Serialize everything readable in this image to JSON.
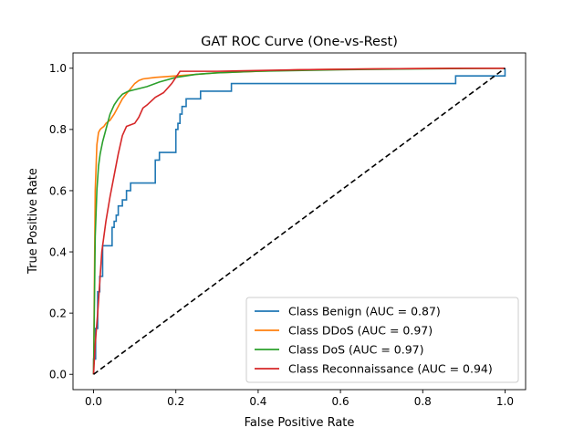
{
  "chart_data": {
    "type": "line",
    "title": "GAT ROC Curve (One-vs-Rest)",
    "xlabel": "False Positive Rate",
    "ylabel": "True Positive Rate",
    "xlim": [
      -0.05,
      1.05
    ],
    "ylim": [
      -0.05,
      1.05
    ],
    "xticks": [
      0.0,
      0.2,
      0.4,
      0.6,
      0.8,
      1.0
    ],
    "yticks": [
      0.0,
      0.2,
      0.4,
      0.6,
      0.8,
      1.0
    ],
    "xtick_labels": [
      "0.0",
      "0.2",
      "0.4",
      "0.6",
      "0.8",
      "1.0"
    ],
    "ytick_labels": [
      "0.0",
      "0.2",
      "0.4",
      "0.6",
      "0.8",
      "1.0"
    ],
    "grid": false,
    "legend_position": "lower right",
    "series": [
      {
        "name": "Class Benign (AUC = 0.87)",
        "color": "#1f77b4",
        "step": true,
        "x": [
          0.0,
          0.0,
          0.005,
          0.01,
          0.015,
          0.022,
          0.045,
          0.05,
          0.055,
          0.06,
          0.07,
          0.08,
          0.09,
          0.145,
          0.15,
          0.16,
          0.17,
          0.2,
          0.205,
          0.21,
          0.215,
          0.225,
          0.26,
          0.335,
          0.88,
          1.0,
          1.0
        ],
        "y": [
          0.0,
          0.05,
          0.15,
          0.27,
          0.32,
          0.42,
          0.48,
          0.5,
          0.52,
          0.55,
          0.57,
          0.6,
          0.625,
          0.625,
          0.7,
          0.725,
          0.725,
          0.8,
          0.82,
          0.85,
          0.875,
          0.9,
          0.925,
          0.95,
          0.975,
          0.975,
          1.0
        ]
      },
      {
        "name": "Class DDoS (AUC = 0.97)",
        "color": "#ff7f0e",
        "step": false,
        "x": [
          0.0,
          0.004,
          0.008,
          0.012,
          0.016,
          0.02,
          0.025,
          0.03,
          0.04,
          0.05,
          0.07,
          0.1,
          0.11,
          0.12,
          0.15,
          0.2,
          0.3,
          0.5,
          0.7,
          0.9,
          1.0
        ],
        "y": [
          0.0,
          0.6,
          0.75,
          0.79,
          0.8,
          0.805,
          0.81,
          0.82,
          0.83,
          0.85,
          0.9,
          0.95,
          0.96,
          0.965,
          0.97,
          0.975,
          0.985,
          0.995,
          0.998,
          1.0,
          1.0
        ]
      },
      {
        "name": "Class DoS (AUC = 0.97)",
        "color": "#2ca02c",
        "step": false,
        "x": [
          0.0,
          0.004,
          0.008,
          0.012,
          0.016,
          0.022,
          0.03,
          0.04,
          0.05,
          0.06,
          0.07,
          0.085,
          0.1,
          0.13,
          0.16,
          0.2,
          0.25,
          0.3,
          0.4,
          0.6,
          0.8,
          1.0
        ],
        "y": [
          0.0,
          0.45,
          0.6,
          0.68,
          0.72,
          0.76,
          0.8,
          0.85,
          0.88,
          0.9,
          0.915,
          0.925,
          0.93,
          0.94,
          0.955,
          0.97,
          0.98,
          0.985,
          0.99,
          0.995,
          0.998,
          1.0
        ]
      },
      {
        "name": "Class Reconnaissance (AUC = 0.94)",
        "color": "#d62728",
        "step": false,
        "x": [
          0.0,
          0.004,
          0.01,
          0.015,
          0.02,
          0.03,
          0.04,
          0.05,
          0.06,
          0.07,
          0.08,
          0.1,
          0.11,
          0.12,
          0.13,
          0.15,
          0.17,
          0.19,
          0.2,
          0.21,
          0.25,
          0.3,
          0.5,
          0.7,
          0.9,
          1.0
        ],
        "y": [
          0.0,
          0.1,
          0.2,
          0.3,
          0.4,
          0.5,
          0.58,
          0.65,
          0.72,
          0.78,
          0.81,
          0.82,
          0.84,
          0.87,
          0.88,
          0.905,
          0.92,
          0.95,
          0.97,
          0.99,
          0.99,
          0.99,
          0.995,
          0.998,
          1.0,
          1.0
        ]
      },
      {
        "name": "Chance",
        "color": "#000000",
        "dashed": true,
        "in_legend": false,
        "x": [
          0.0,
          1.0
        ],
        "y": [
          0.0,
          1.0
        ]
      }
    ]
  }
}
